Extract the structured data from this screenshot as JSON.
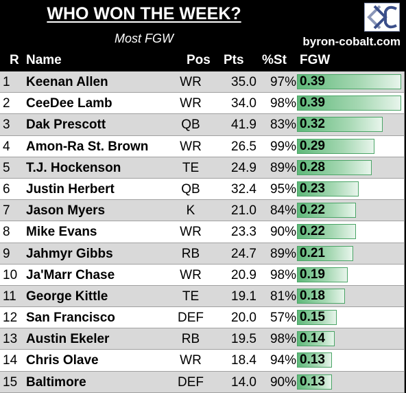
{
  "title": "WHO WON THE WEEK?",
  "subtitle": "Most FGW",
  "site": "byron-cobalt.com",
  "logo_icon": "byron-cobalt-logo-icon",
  "columns": {
    "rank": "R",
    "name": "Name",
    "pos": "Pos",
    "pts": "Pts",
    "pct": "%St",
    "fgw": "FGW"
  },
  "rows": [
    {
      "rank": "1",
      "name": "Keenan Allen",
      "pos": "WR",
      "pts": "35.0",
      "pct": "97%",
      "fgw": "0.39",
      "fgw_value": 0.39
    },
    {
      "rank": "2",
      "name": "CeeDee Lamb",
      "pos": "WR",
      "pts": "34.0",
      "pct": "98%",
      "fgw": "0.39",
      "fgw_value": 0.39
    },
    {
      "rank": "3",
      "name": "Dak Prescott",
      "pos": "QB",
      "pts": "41.9",
      "pct": "83%",
      "fgw": "0.32",
      "fgw_value": 0.32
    },
    {
      "rank": "4",
      "name": "Amon-Ra St. Brown",
      "pos": "WR",
      "pts": "26.5",
      "pct": "99%",
      "fgw": "0.29",
      "fgw_value": 0.29
    },
    {
      "rank": "5",
      "name": "T.J. Hockenson",
      "pos": "TE",
      "pts": "24.9",
      "pct": "89%",
      "fgw": "0.28",
      "fgw_value": 0.28
    },
    {
      "rank": "6",
      "name": "Justin Herbert",
      "pos": "QB",
      "pts": "32.4",
      "pct": "95%",
      "fgw": "0.23",
      "fgw_value": 0.23
    },
    {
      "rank": "7",
      "name": "Jason Myers",
      "pos": "K",
      "pts": "21.0",
      "pct": "84%",
      "fgw": "0.22",
      "fgw_value": 0.22
    },
    {
      "rank": "8",
      "name": "Mike Evans",
      "pos": "WR",
      "pts": "23.3",
      "pct": "90%",
      "fgw": "0.22",
      "fgw_value": 0.22
    },
    {
      "rank": "9",
      "name": "Jahmyr Gibbs",
      "pos": "RB",
      "pts": "24.7",
      "pct": "89%",
      "fgw": "0.21",
      "fgw_value": 0.21
    },
    {
      "rank": "10",
      "name": "Ja'Marr Chase",
      "pos": "WR",
      "pts": "20.9",
      "pct": "98%",
      "fgw": "0.19",
      "fgw_value": 0.19
    },
    {
      "rank": "11",
      "name": "George Kittle",
      "pos": "TE",
      "pts": "19.1",
      "pct": "81%",
      "fgw": "0.18",
      "fgw_value": 0.18
    },
    {
      "rank": "12",
      "name": "San Francisco",
      "pos": "DEF",
      "pts": "20.0",
      "pct": "57%",
      "fgw": "0.15",
      "fgw_value": 0.15
    },
    {
      "rank": "13",
      "name": "Austin Ekeler",
      "pos": "RB",
      "pts": "19.5",
      "pct": "98%",
      "fgw": "0.14",
      "fgw_value": 0.14
    },
    {
      "rank": "14",
      "name": "Chris Olave",
      "pos": "WR",
      "pts": "18.4",
      "pct": "94%",
      "fgw": "0.13",
      "fgw_value": 0.13
    },
    {
      "rank": "15",
      "name": "Baltimore",
      "pos": "DEF",
      "pts": "14.0",
      "pct": "90%",
      "fgw": "0.13",
      "fgw_value": 0.13
    }
  ]
}
